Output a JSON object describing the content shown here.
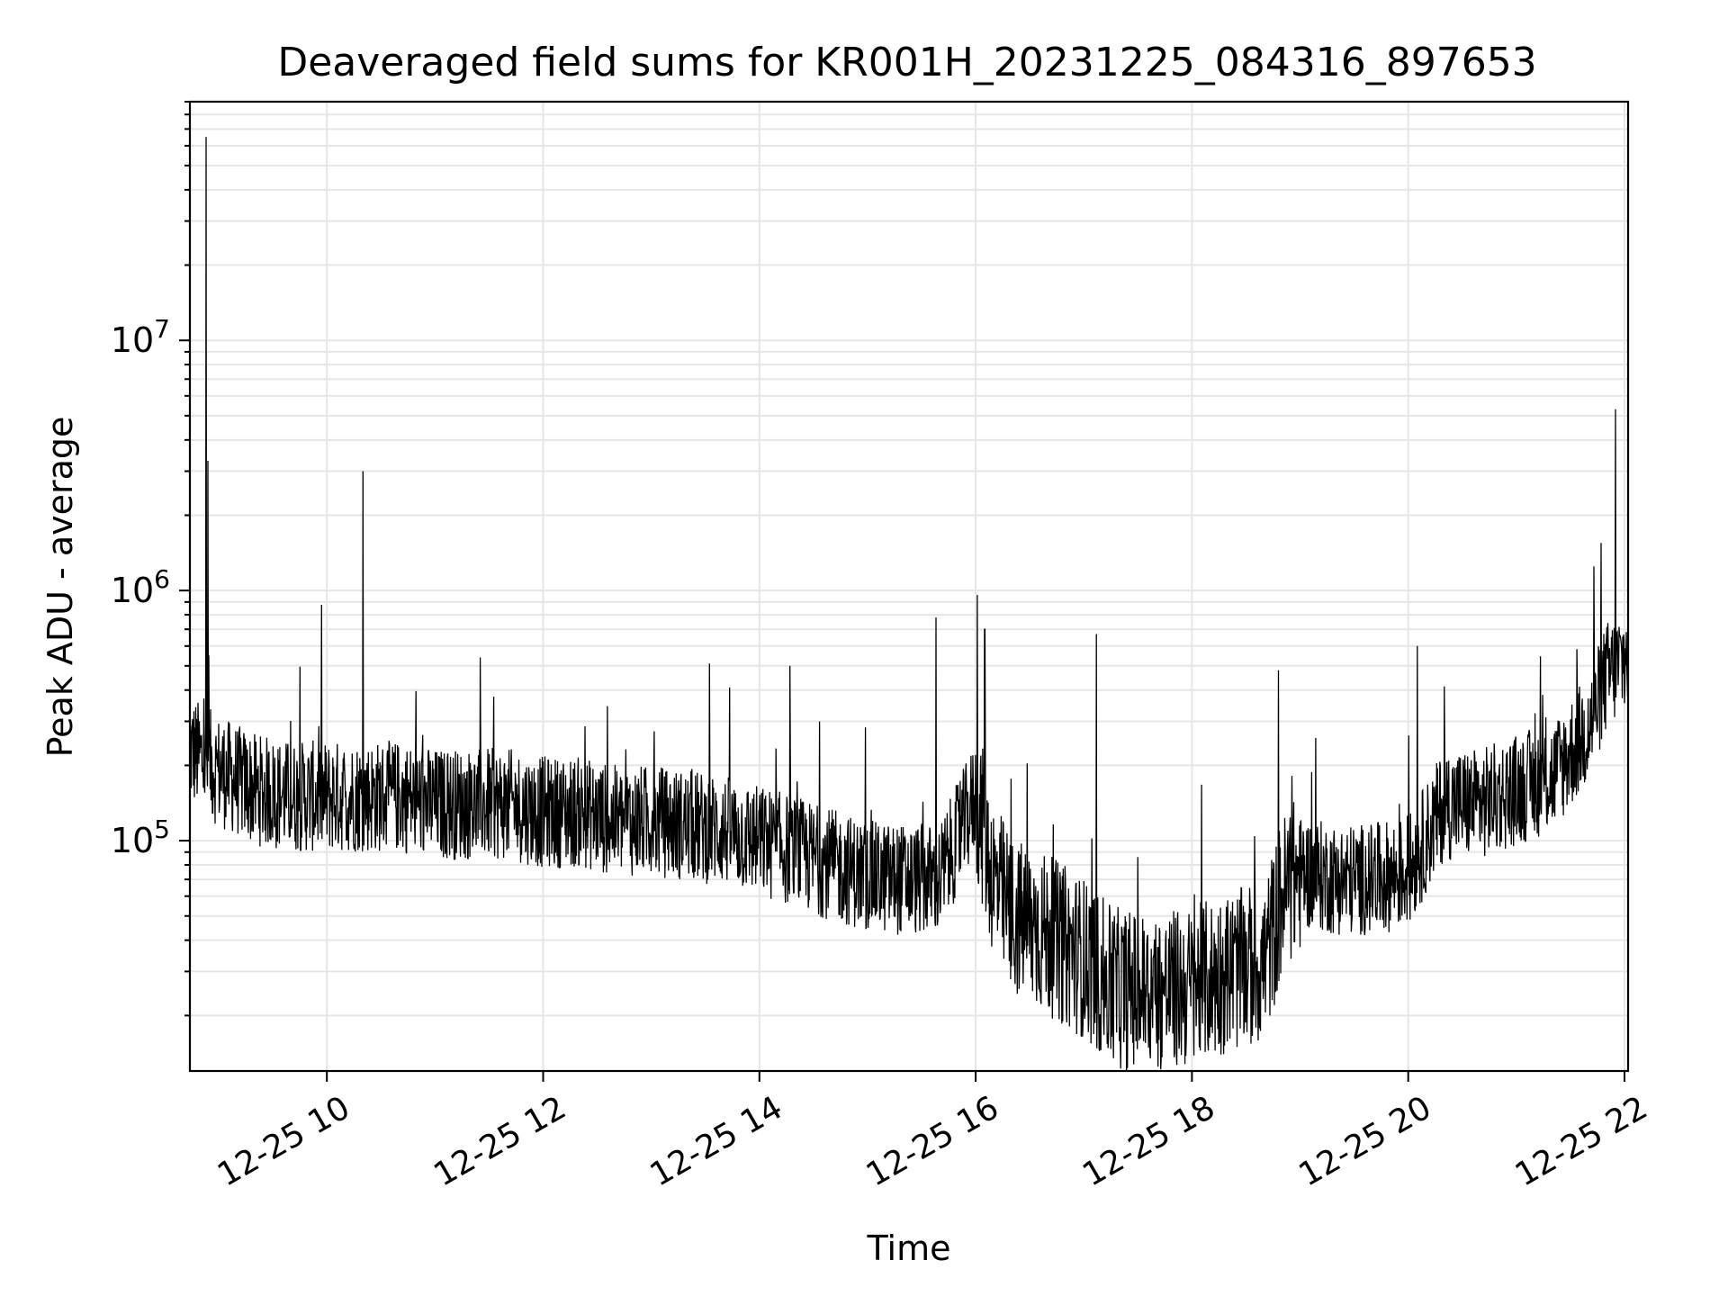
{
  "chart_data": {
    "type": "line",
    "title": "Deaveraged field sums for KR001H_20231225_084316_897653",
    "xlabel": "Time",
    "ylabel": "Peak ADU - average",
    "x_ticks": [
      "12-25 10",
      "12-25 12",
      "12-25 14",
      "12-25 16",
      "12-25 18",
      "12-25 20",
      "12-25 22"
    ],
    "y_ticks": [
      {
        "base": "10",
        "exp": "5"
      },
      {
        "base": "10",
        "exp": "6"
      },
      {
        "base": "10",
        "exp": "7"
      }
    ],
    "x_range": [
      "12-25 08:44",
      "12-25 22:02"
    ],
    "ylim": [
      12000,
      90000000
    ],
    "yscale": "log",
    "grid": true,
    "line_color": "#000000",
    "grid_color": "#e6e6e6",
    "series": [
      {
        "x": [
          "08:44",
          "09:00",
          "09:20",
          "09:40",
          "10:00",
          "10:20",
          "10:40",
          "11:00",
          "11:20",
          "11:40",
          "12:00",
          "12:20",
          "12:40",
          "13:00",
          "13:20",
          "13:40",
          "14:00",
          "14:20",
          "14:40",
          "15:00",
          "15:20",
          "15:40",
          "16:00",
          "16:10",
          "16:20",
          "16:40",
          "17:00",
          "17:15",
          "17:30",
          "17:45",
          "18:00",
          "18:20",
          "18:40",
          "18:50",
          "19:00",
          "19:20",
          "19:40",
          "20:00",
          "20:20",
          "20:40",
          "21:00",
          "21:20",
          "21:40",
          "21:50",
          "22:02"
        ],
        "values": [
          230000,
          190000,
          160000,
          150000,
          150000,
          150000,
          150000,
          140000,
          140000,
          140000,
          130000,
          130000,
          120000,
          120000,
          115000,
          110000,
          100000,
          90000,
          80000,
          72000,
          70000,
          70000,
          150000,
          70000,
          50000,
          42000,
          34000,
          26000,
          25000,
          25000,
          26000,
          30000,
          32000,
          60000,
          75000,
          70000,
          70000,
          75000,
          140000,
          140000,
          160000,
          180000,
          280000,
          450000,
          550000
        ]
      }
    ],
    "spikes": [
      {
        "x": "08:53",
        "y": 65000000
      },
      {
        "x": "08:54",
        "y": 3300000
      },
      {
        "x": "10:20",
        "y": 3000000
      },
      {
        "x": "15:38",
        "y": 780000
      },
      {
        "x": "16:01",
        "y": 960000
      },
      {
        "x": "16:05",
        "y": 700000
      },
      {
        "x": "21:43",
        "y": 1250000
      },
      {
        "x": "21:55",
        "y": 5300000
      },
      {
        "x": "14:17",
        "y": 500000
      },
      {
        "x": "11:25",
        "y": 540000
      },
      {
        "x": "17:07",
        "y": 670000
      },
      {
        "x": "18:48",
        "y": 480000
      },
      {
        "x": "20:05",
        "y": 600000
      }
    ]
  }
}
